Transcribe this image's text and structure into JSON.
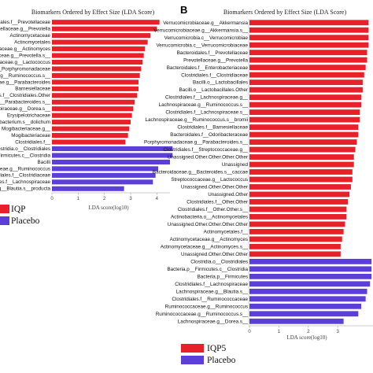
{
  "panel_b_label": "B",
  "chart_data": [
    {
      "type": "bar",
      "orientation": "horizontal",
      "title": "Biomarkers Ordered by Effect Size (LDA Score)",
      "xlabel": "LDA score(log10)",
      "xlim": [
        0,
        4.5
      ],
      "xticks": [
        "0",
        "1",
        "2",
        "3",
        "4"
      ],
      "legend_position": "bottom-left",
      "series": [
        {
          "name": "IQP",
          "color": "#e8202a"
        },
        {
          "name": "Placebo",
          "color": "#5b3fd8"
        }
      ],
      "categories": [
        "Bacteroidales.f__Prevotellaceae",
        "Prevotellaceae.g__Prevotella",
        "Actinomycetaceae",
        "Actinomycetales",
        "Actinomycetaceae.g__Actinomyces",
        "Prevotellaceae.g__Prevotella.s__",
        "Lactobacillales.f__Streptococcaceae.g__Lactococcus",
        "Clostridiales.f__Porphyromonadaceae",
        "Lachnospiraceae.g__Ruminococcus.s__",
        "Porphyromonadaceae.g__Parabacteroides",
        "Barnesiellaceae",
        "Clostridiales.f__Clostridiales.Other",
        "Porphyromonadaceae.g__Parabacteroides.s__",
        "Lachnospiraceae.g__Dorea.s__",
        "Erysipelotrichaceae",
        "Eubacterium.s__dolichum",
        "Mogibacteriaceae.g__",
        "Mogibacteriaceae",
        "Clostridiales.f__",
        "Clostridia.o__Clostridiales",
        "Bacteria.p__Firmicutes.c__Clostridia",
        "Bacilli",
        "Ruminococcaceae.g__Ruminococcus",
        "Clostridiales.f__Clostridiaceae",
        "Clostridiales.f__Lachnospiraceae",
        "Lachnospiraceae.g__Blautia.s__producta"
      ],
      "values": [
        4.1,
        4.0,
        3.75,
        3.65,
        3.55,
        3.5,
        3.45,
        3.4,
        3.35,
        3.3,
        3.3,
        3.25,
        3.15,
        3.1,
        3.05,
        3.0,
        2.95,
        2.9,
        2.8,
        4.6,
        4.6,
        4.5,
        4.05,
        3.95,
        3.85,
        2.75
      ],
      "groups": [
        "IQP",
        "IQP",
        "IQP",
        "IQP",
        "IQP",
        "IQP",
        "IQP",
        "IQP",
        "IQP",
        "IQP",
        "IQP",
        "IQP",
        "IQP",
        "IQP",
        "IQP",
        "IQP",
        "IQP",
        "IQP",
        "IQP",
        "Placebo",
        "Placebo",
        "Placebo",
        "Placebo",
        "Placebo",
        "Placebo",
        "Placebo"
      ]
    },
    {
      "type": "bar",
      "orientation": "horizontal",
      "title": "Biomarkers Ordered by Effect Size (LDA Score)",
      "xlabel": "LDA score(log10)",
      "xlim": [
        0,
        4.2
      ],
      "xticks": [
        "0",
        "1",
        "2",
        "3"
      ],
      "legend_position": "bottom-left",
      "series": [
        {
          "name": "IQP5",
          "color": "#e8202a"
        },
        {
          "name": "Placebo",
          "color": "#5b3fd8"
        }
      ],
      "categories": [
        "Verrucomicrobiaceae.g__Akkermansia",
        "Verrucomicrobiaceae.g__Akkermansia.s__",
        "Verrucomicrobia.c__Verrucomicrobiae",
        "Verrucomicrobia.c__Verrucomicrobiaceae",
        "Bacteroidales.f__Prevotellaceae",
        "Prevotellaceae.g__Prevotella",
        "Bacteroidales.f__Enterobacteriaceae",
        "Clostridiales.f__Clostridiaceae",
        "Bacilli.o__Lactobacillales",
        "Bacilli.o__Lactobacillales.Other",
        "Clostridiales.f__Lachnospiraceae.g__",
        "Lachnospiraceae.g__Ruminococcus.s__",
        "Clostridiales.f__Lachnospiraceae.s__",
        "Lachnospiraceae.g__Ruminococcus.s__bromii",
        "Clostridiales.f__Barnesiellaceae",
        "Bacteroidales.f__Odoribacteraceae",
        "Porphyromonadaceae.g__Parabacteroides.s__",
        "Clostridiales.f__Streptococcaceae.g__",
        "Unassigned.Other.Other.Other.Other",
        "Unassigned",
        "Bacteroidaceae.g__Bacteroides.s__caccae",
        "Streptococcaceae.g__Lactococcus",
        "Unassigned.Other.Other.Other",
        "Unassigned.Other",
        "Clostridiales.f__Other.Other",
        "Clostridiales.f__Other.Other.s__",
        "Actinobacteria.o__Actinomycetales",
        "Unassigned.Other.Other.Other.Other",
        "Actinomycetales.f__",
        "Actinomycetaceae.g__Actinomyces",
        "Actinomycetaceae.g__Actinomyces.s__",
        "Unassigned.Other.Other.Other",
        "Clostridia.o__Clostridiales",
        "Bacteria.p__Firmicutes.c__Clostridia",
        "Bacteria.p__Firmicutes",
        "Clostridiales.f__Lachnospiraceae",
        "Lachnospiraceae.g__Blautia.s__",
        "Clostridiales.f__Ruminococcaceae",
        "Ruminococcaceae.g__Ruminococcus",
        "Ruminococcaceae.g__Ruminococcus.s__",
        "Lachnospiraceae.g__Dorea.s__"
      ],
      "values": [
        4.05,
        4.05,
        4.05,
        4.05,
        4.0,
        4.0,
        3.95,
        3.9,
        3.85,
        3.85,
        3.8,
        3.8,
        3.75,
        3.75,
        3.7,
        3.7,
        3.65,
        3.6,
        3.55,
        3.55,
        3.5,
        3.5,
        3.45,
        3.4,
        3.35,
        3.3,
        3.3,
        3.25,
        3.2,
        3.15,
        3.1,
        3.1,
        4.15,
        4.15,
        4.15,
        4.1,
        4.0,
        3.95,
        3.8,
        3.7,
        3.2
      ],
      "groups": [
        "IQP5",
        "IQP5",
        "IQP5",
        "IQP5",
        "IQP5",
        "IQP5",
        "IQP5",
        "IQP5",
        "IQP5",
        "IQP5",
        "IQP5",
        "IQP5",
        "IQP5",
        "IQP5",
        "IQP5",
        "IQP5",
        "IQP5",
        "IQP5",
        "IQP5",
        "IQP5",
        "IQP5",
        "IQP5",
        "IQP5",
        "IQP5",
        "IQP5",
        "IQP5",
        "IQP5",
        "IQP5",
        "IQP5",
        "IQP5",
        "IQP5",
        "IQP5",
        "Placebo",
        "Placebo",
        "Placebo",
        "Placebo",
        "Placebo",
        "Placebo",
        "Placebo",
        "Placebo",
        "Placebo"
      ]
    }
  ]
}
